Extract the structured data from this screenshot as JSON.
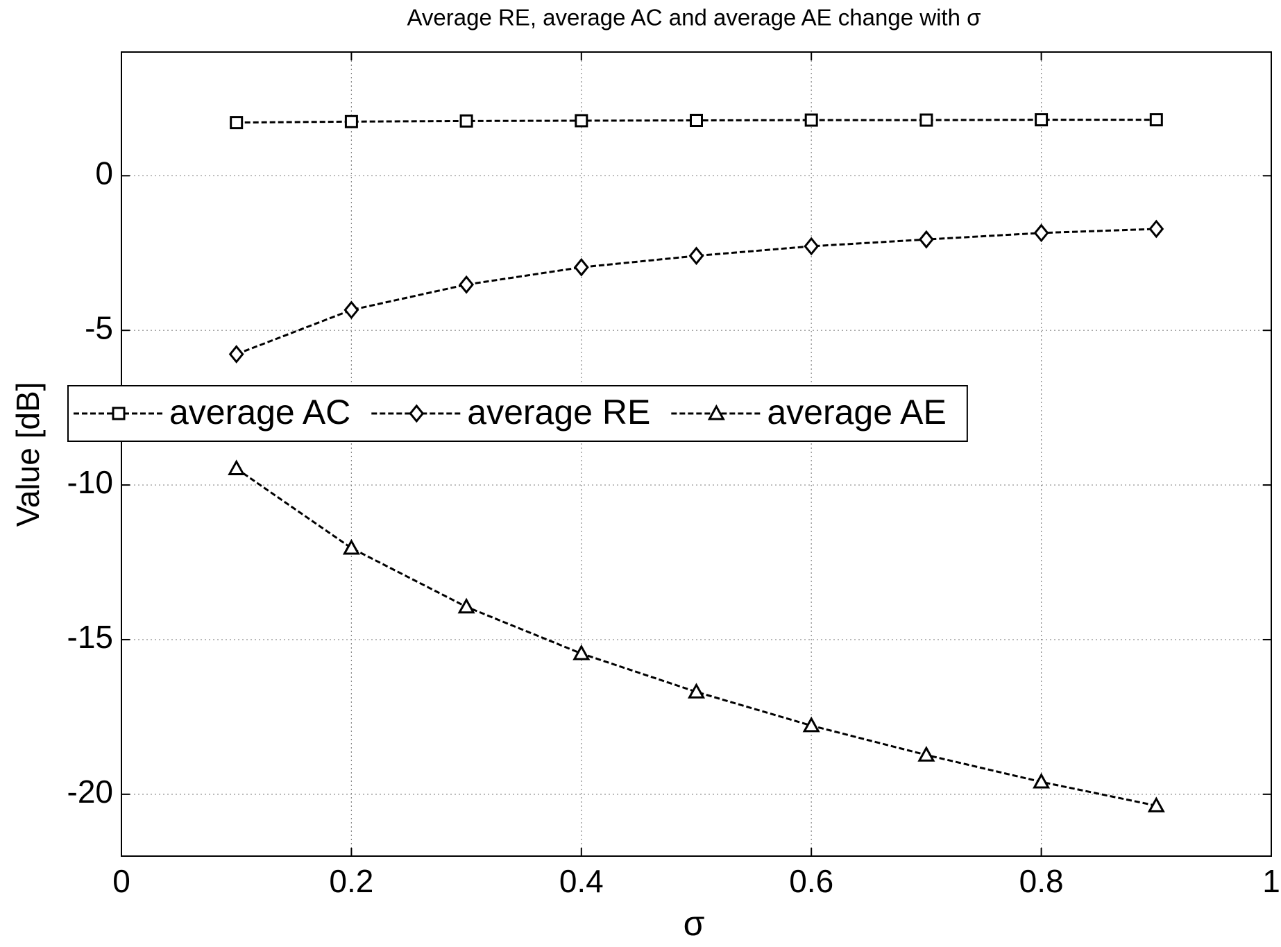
{
  "chart_data": {
    "type": "line",
    "title": "Average RE, average AC and average AE change with σ",
    "x_label": "σ",
    "y_label": "Value [dB]",
    "x": [
      0.1,
      0.2,
      0.3,
      0.4,
      0.5,
      0.6,
      0.7,
      0.8,
      0.9
    ],
    "series": [
      {
        "name": "average AC",
        "color": "#000000",
        "marker": "square",
        "values": [
          1.72,
          1.75,
          1.77,
          1.78,
          1.79,
          1.8,
          1.8,
          1.81,
          1.81
        ]
      },
      {
        "name": "average RE",
        "color": "#000000",
        "marker": "diamond",
        "values": [
          -5.77,
          -4.34,
          -3.52,
          -2.96,
          -2.59,
          -2.28,
          -2.06,
          -1.85,
          -1.72
        ]
      },
      {
        "name": "average AE",
        "color": "#000000",
        "marker": "triangle",
        "values": [
          -9.47,
          -12.04,
          -13.94,
          -15.45,
          -16.69,
          -17.78,
          -18.73,
          -19.6,
          -20.37
        ]
      }
    ],
    "xlim": [
      0,
      1
    ],
    "xticks": [
      0,
      0.2,
      0.4,
      0.6,
      0.8,
      1
    ],
    "ylim": [
      -22,
      4
    ],
    "yticks": [
      -20,
      -15,
      -10,
      -5,
      0
    ],
    "grid": true,
    "legend": "center left"
  }
}
